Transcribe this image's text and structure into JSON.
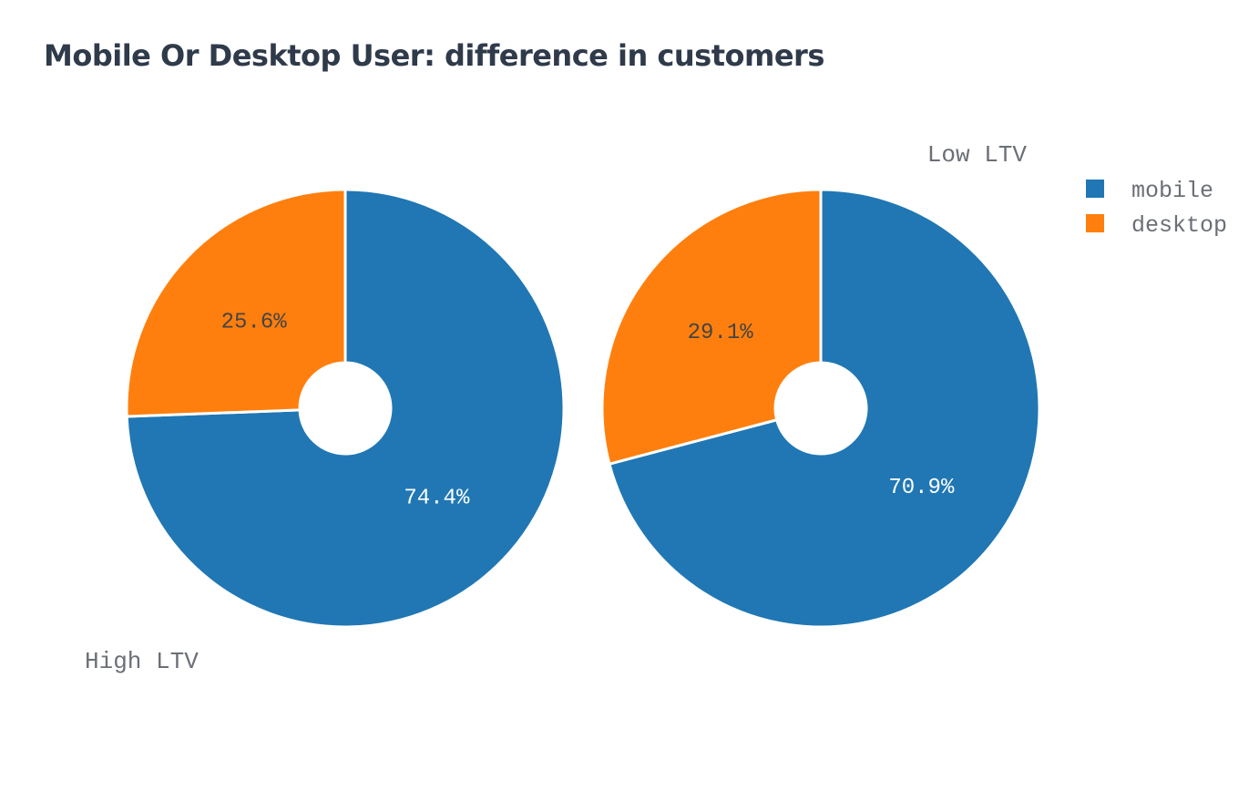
{
  "chart_data": {
    "type": "pie",
    "title": "Mobile Or Desktop User: difference in customers",
    "hole": true,
    "legend_position": "top-right",
    "legend": [
      {
        "label": "mobile",
        "color": "#2077b4"
      },
      {
        "label": "desktop",
        "color": "#ff7f0e"
      }
    ],
    "panels": [
      {
        "name": "High LTV",
        "slices": [
          {
            "label": "mobile",
            "value": 74.4,
            "text": "74.4%",
            "color": "#2077b4",
            "text_color": "#ffffff"
          },
          {
            "label": "desktop",
            "value": 25.6,
            "text": "25.6%",
            "color": "#ff7f0e",
            "text_color": "#444444"
          }
        ]
      },
      {
        "name": "Low LTV",
        "slices": [
          {
            "label": "mobile",
            "value": 70.9,
            "text": "70.9%",
            "color": "#2077b4",
            "text_color": "#ffffff"
          },
          {
            "label": "desktop",
            "value": 29.1,
            "text": "29.1%",
            "color": "#ff7f0e",
            "text_color": "#444444"
          }
        ]
      }
    ]
  }
}
